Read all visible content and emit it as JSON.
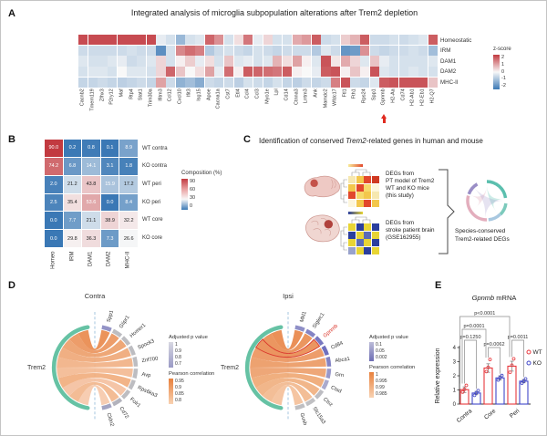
{
  "panelA": {
    "label": "A",
    "title": "Integrated analysis of microglia subpopulation alterations after Trem2 depletion",
    "rows": [
      "Homeostatic",
      "IRM",
      "DAM1",
      "DAM2",
      "MHC-II"
    ],
    "genes": [
      "Cacnb2",
      "Tmem119",
      "Zfhx3",
      "P2ry12",
      "Maf",
      "Rtp4",
      "Stat1",
      "Trim30a",
      "Ifitm3",
      "Ccl12",
      "Cxcl10",
      "Ifit3",
      "Isg15",
      "Apoe",
      "Cacna1a",
      "Cst7",
      "Etl4",
      "Ccl4",
      "Ccl3",
      "Myo1e",
      "Lpl",
      "Cd14",
      "Ctnna3",
      "Lrrtm3",
      "Ank",
      "Mamdc2",
      "Wfdc17",
      "Ftl1",
      "Fth1",
      "Rps24",
      "Spp1",
      "Gpnmb",
      "H2-Aa",
      "Cd74",
      "H2-Ab1",
      "H2-Eb1",
      "H2-Q7"
    ],
    "marker_gene": "Gpnmb",
    "marker_gene_index": 31,
    "marker_color": "#e02b20",
    "legend_title": "z-score",
    "legend_ticks": [
      "2",
      "1",
      "0",
      "-1",
      "-2"
    ],
    "values": [
      [
        2,
        2,
        2,
        2,
        2,
        2,
        2,
        2,
        -0.2,
        -0.4,
        -1.1,
        -0.4,
        -0.3,
        1.7,
        1.2,
        -0.4,
        0.3,
        1.5,
        -0.2,
        0.4,
        -0.4,
        -0.4,
        0.9,
        1.1,
        1.8,
        -0.5,
        -0.4,
        0.5,
        0.8,
        1.8,
        -0.5,
        -0.5,
        -0.4,
        -0.5,
        -0.4,
        -0.3,
        1.8
      ],
      [
        -0.5,
        -0.5,
        -0.5,
        -0.5,
        -0.5,
        -0.4,
        -0.5,
        -0.5,
        -1.8,
        -0.4,
        1.3,
        1.6,
        1.4,
        -0.8,
        -0.5,
        -0.4,
        -0.5,
        -0.6,
        -0.4,
        -0.5,
        -0.6,
        -0.5,
        -0.5,
        -0.5,
        -0.8,
        -0.3,
        -0.5,
        -1.7,
        -1.6,
        1.2,
        -0.5,
        -0.6,
        -0.5,
        -0.5,
        -0.4,
        -0.5,
        -1.0
      ],
      [
        -0.3,
        -0.4,
        -0.4,
        -0.3,
        -0.2,
        -0.5,
        -0.4,
        -0.3,
        0.4,
        -0.4,
        0.1,
        0.5,
        -0.2,
        0.3,
        -0.4,
        0.6,
        -0.3,
        -0.2,
        -0.4,
        -0.3,
        0.8,
        0.3,
        1.0,
        0.1,
        -0.3,
        1.9,
        0.2,
        0.9,
        0.4,
        -0.3,
        0.6,
        -0.2,
        -0.4,
        -0.4,
        -0.4,
        -0.4,
        -0.3
      ],
      [
        -0.4,
        -0.3,
        -0.3,
        -0.4,
        0,
        -0.3,
        -0.3,
        -0.4,
        0.4,
        1.7,
        0.6,
        0,
        0.3,
        1,
        -0.2,
        1.6,
        0.1,
        1.8,
        1.7,
        1.6,
        1.5,
        1.8,
        0.1,
        0,
        -0.2,
        1.8,
        1.9,
        0.1,
        0.6,
        0.1,
        1.9,
        -0.3,
        -0.4,
        -0.4,
        -0.3,
        -0.4,
        -0.4
      ],
      [
        -0.6,
        -0.6,
        -0.5,
        -0.6,
        -0.7,
        -0.6,
        -0.5,
        -0.6,
        1,
        -0.5,
        -1.2,
        -1,
        -1.3,
        -0.5,
        -0.6,
        -0.5,
        -0.7,
        -0.4,
        -0.5,
        -0.6,
        -0.4,
        -0.6,
        -0.7,
        -0.5,
        -0.6,
        -0.5,
        1.4,
        1.9,
        -0.5,
        -0.6,
        -0.3,
        1.8,
        1.9,
        1.9,
        1.9,
        1.9,
        0.6
      ]
    ]
  },
  "panelB": {
    "label": "B",
    "columns": [
      "Homeo",
      "IRM",
      "DAM1",
      "DAM2",
      "MHC-II"
    ],
    "rows": [
      "WT contra",
      "KO contra",
      "WT peri",
      "KO peri",
      "WT core",
      "KO core"
    ],
    "values": [
      [
        90.0,
        0.2,
        0.8,
        0.1,
        8.9
      ],
      [
        74.2,
        6.8,
        14.1,
        3.1,
        1.8
      ],
      [
        2.0,
        21.2,
        43.8,
        15.9,
        17.2
      ],
      [
        2.5,
        35.4,
        53.6,
        0.0,
        8.4
      ],
      [
        0.0,
        7.7,
        21.1,
        38.9,
        32.2
      ],
      [
        0.0,
        29.8,
        36.3,
        7.3,
        26.6
      ]
    ],
    "legend_title": "Composition (%)",
    "legend_ticks": [
      "90",
      "60",
      "30",
      "0"
    ]
  },
  "panelC": {
    "label": "C",
    "title_pre": "Identification of conserved ",
    "title_italic": "Trem2",
    "title_post": "-related genes in human and mouse",
    "mouse_lines": [
      "DEGs from",
      "PT model of Trem2",
      "WT and KO mice",
      "(this study)"
    ],
    "human_lines": [
      "DEGs from",
      "stroke patient brain",
      "(GSE162955)"
    ],
    "result_lines": [
      "Species-conserved",
      "Trem2-related DEGs"
    ],
    "mouse_gradient": [
      "#f9ec9a",
      "#e2482c"
    ],
    "human_gradient": [
      "#2b3f9e",
      "#e8d534"
    ],
    "mouse_colors": [
      [
        "#f6e8b0",
        "#f3c74c",
        "#e2482c",
        "#cf3a22"
      ],
      [
        "#f3c74c",
        "#e2482c",
        "#f6d96a",
        "#fdf6dc"
      ],
      [
        "#e2482c",
        "#f6d96a",
        "#f3c74c",
        "#f6e8b0"
      ],
      [
        "#fdf6dc",
        "#f3c74c",
        "#e2482c",
        "#f3c74c"
      ]
    ],
    "human_colors": [
      [
        "#e8d534",
        "#2b3f9e",
        "#e8d534",
        "#2b3f9e"
      ],
      [
        "#2b3f9e",
        "#e8d534",
        "#5a6cb8",
        "#e8d534"
      ],
      [
        "#e8d534",
        "#5a6cb8",
        "#e8d534",
        "#2b3f9e"
      ],
      [
        "#98a2cc",
        "#e8d534",
        "#2b3f9e",
        "#e8d534"
      ]
    ]
  },
  "panelD": {
    "label": "D",
    "contra": {
      "title": "Contra",
      "source": "Trem2",
      "source_color": "#66c2a4",
      "targets": [
        "Spp1",
        "Glipr1",
        "Homer1",
        "Spock3",
        "Znf700",
        "Avp",
        "Rps6ka3",
        "Folr1",
        "Cd72",
        "Cldn2"
      ],
      "target_colors": [
        "#9393c6",
        "#bdbdc1",
        "#bdbdc1",
        "#bdbdc1",
        "#bdbdc1",
        "#bdbdc1",
        "#bdbdc1",
        "#bdbdc1",
        "#b3b3bd",
        "#a4a4c2"
      ],
      "ribbon_colors": [
        "#e98a4d",
        "#eb955d",
        "#ed9f6b",
        "#efa878",
        "#f1b186",
        "#f3ba93",
        "#f1ae7e",
        "#f4c09f",
        "#f2b68c",
        "#f6c9ab"
      ],
      "highlight_index": -1,
      "p_legend": {
        "title": "Adjusted p value",
        "ticks": [
          "1",
          "0.9",
          "0.8",
          "0.7"
        ],
        "colors": [
          "#d8d8e2",
          "#9a9ac6"
        ]
      },
      "r_legend": {
        "title": "Pearson correlation",
        "ticks": [
          "0.95",
          "0.9",
          "0.85",
          "0.8"
        ],
        "colors": [
          "#e8813d",
          "#f8d2b2"
        ]
      }
    },
    "ipsi": {
      "title": "Ipsi",
      "source": "Trem2",
      "source_color": "#66c2a4",
      "targets": [
        "Mkl1",
        "Siglec1",
        "Gpnmb",
        "Cd84",
        "Abca1",
        "Grn",
        "Ctsd",
        "Ctsz",
        "Slc15a3",
        "Gusb"
      ],
      "target_colors": [
        "#8f8fc7",
        "#8484c4",
        "#7878c0",
        "#7070be",
        "#8282c3",
        "#9898ca",
        "#aaaacd",
        "#bdbdc2",
        "#c0c0c3",
        "#bfbfc2"
      ],
      "ribbon_colors": [
        "#e8874a",
        "#e98d52",
        "#ea9058",
        "#eb955e",
        "#ec9a64",
        "#eda06c",
        "#efa874",
        "#f0b080",
        "#f2b88e",
        "#f4c09a"
      ],
      "highlight_index": 2,
      "highlight_color": "#d93025",
      "p_legend": {
        "title": "Adjusted p value",
        "ticks": [
          "0.1",
          "0.05",
          "0.002"
        ],
        "colors": [
          "#bcbcd8",
          "#6e6eb4"
        ]
      },
      "r_legend": {
        "title": "Pearson correlation",
        "ticks": [
          "1",
          "0.995",
          "0.99",
          "0.985"
        ],
        "colors": [
          "#e8813d",
          "#f8d2b2"
        ]
      }
    }
  },
  "panelE": {
    "label": "E",
    "title_italic": "Gpnmb",
    "title_rest": " mRNA",
    "ylabel": "Relative expression",
    "yticks": [
      "0",
      "1",
      "2",
      "3",
      "4"
    ],
    "categories": [
      "Contra",
      "Core",
      "Peri"
    ],
    "series": [
      {
        "name": "WT",
        "color": "#e8383d",
        "values": [
          1.02,
          2.55,
          2.68
        ],
        "errors": [
          0.2,
          0.3,
          0.35
        ],
        "points": [
          [
            0.85,
            1.05,
            1.32
          ],
          [
            2.3,
            2.6,
            3.15
          ],
          [
            2.25,
            2.75,
            3.2
          ]
        ]
      },
      {
        "name": "KO",
        "color": "#4046c8",
        "values": [
          0.78,
          1.85,
          1.62
        ],
        "errors": [
          0.12,
          0.15,
          0.12
        ],
        "points": [
          [
            0.62,
            0.8,
            0.95
          ],
          [
            1.7,
            1.88,
            2.02
          ],
          [
            1.48,
            1.62,
            1.78
          ]
        ]
      }
    ],
    "comparisons": [
      {
        "label": "p=0.1250",
        "a": [
          0,
          0
        ],
        "b": [
          0,
          1
        ]
      },
      {
        "label": "p=0.0062",
        "a": [
          1,
          0
        ],
        "b": [
          1,
          1
        ]
      },
      {
        "label": "p=0.0011",
        "a": [
          2,
          0
        ],
        "b": [
          2,
          1
        ]
      },
      {
        "label": "p=0.0001",
        "a": [
          0,
          0
        ],
        "b": [
          1,
          0
        ]
      },
      {
        "label": "p<0.0001",
        "a": [
          0,
          0
        ],
        "b": [
          2,
          0
        ]
      }
    ]
  },
  "chart_data": [
    {
      "id": "B-composition",
      "type": "heatmap",
      "rows": [
        "WT contra",
        "KO contra",
        "WT peri",
        "KO peri",
        "WT core",
        "KO core"
      ],
      "columns": [
        "Homeo",
        "IRM",
        "DAM1",
        "DAM2",
        "MHC-II"
      ],
      "values": [
        [
          90.0,
          0.2,
          0.8,
          0.1,
          8.9
        ],
        [
          74.2,
          6.8,
          14.1,
          3.1,
          1.8
        ],
        [
          2.0,
          21.2,
          43.8,
          15.9,
          17.2
        ],
        [
          2.5,
          35.4,
          53.6,
          0.0,
          8.4
        ],
        [
          0.0,
          7.7,
          21.1,
          38.9,
          32.2
        ],
        [
          0.0,
          29.8,
          36.3,
          7.3,
          26.6
        ]
      ],
      "legend": "Composition (%)",
      "legend_ticks": [
        90,
        60,
        30,
        0
      ]
    },
    {
      "id": "E-gpnmb-mrna",
      "type": "bar",
      "title": "Gpnmb mRNA",
      "categories": [
        "Contra",
        "Core",
        "Peri"
      ],
      "ylabel": "Relative expression",
      "ylim": [
        0,
        4
      ],
      "series": [
        {
          "name": "WT",
          "values": [
            1.02,
            2.55,
            2.68
          ]
        },
        {
          "name": "KO",
          "values": [
            0.78,
            1.85,
            1.62
          ]
        }
      ],
      "pvalues": [
        "p=0.1250 Contra WT vs KO",
        "p=0.0062 Core WT vs KO",
        "p=0.0011 Peri WT vs KO",
        "p=0.0001 Contra vs Core",
        "p<0.0001 Contra vs Peri"
      ]
    }
  ]
}
